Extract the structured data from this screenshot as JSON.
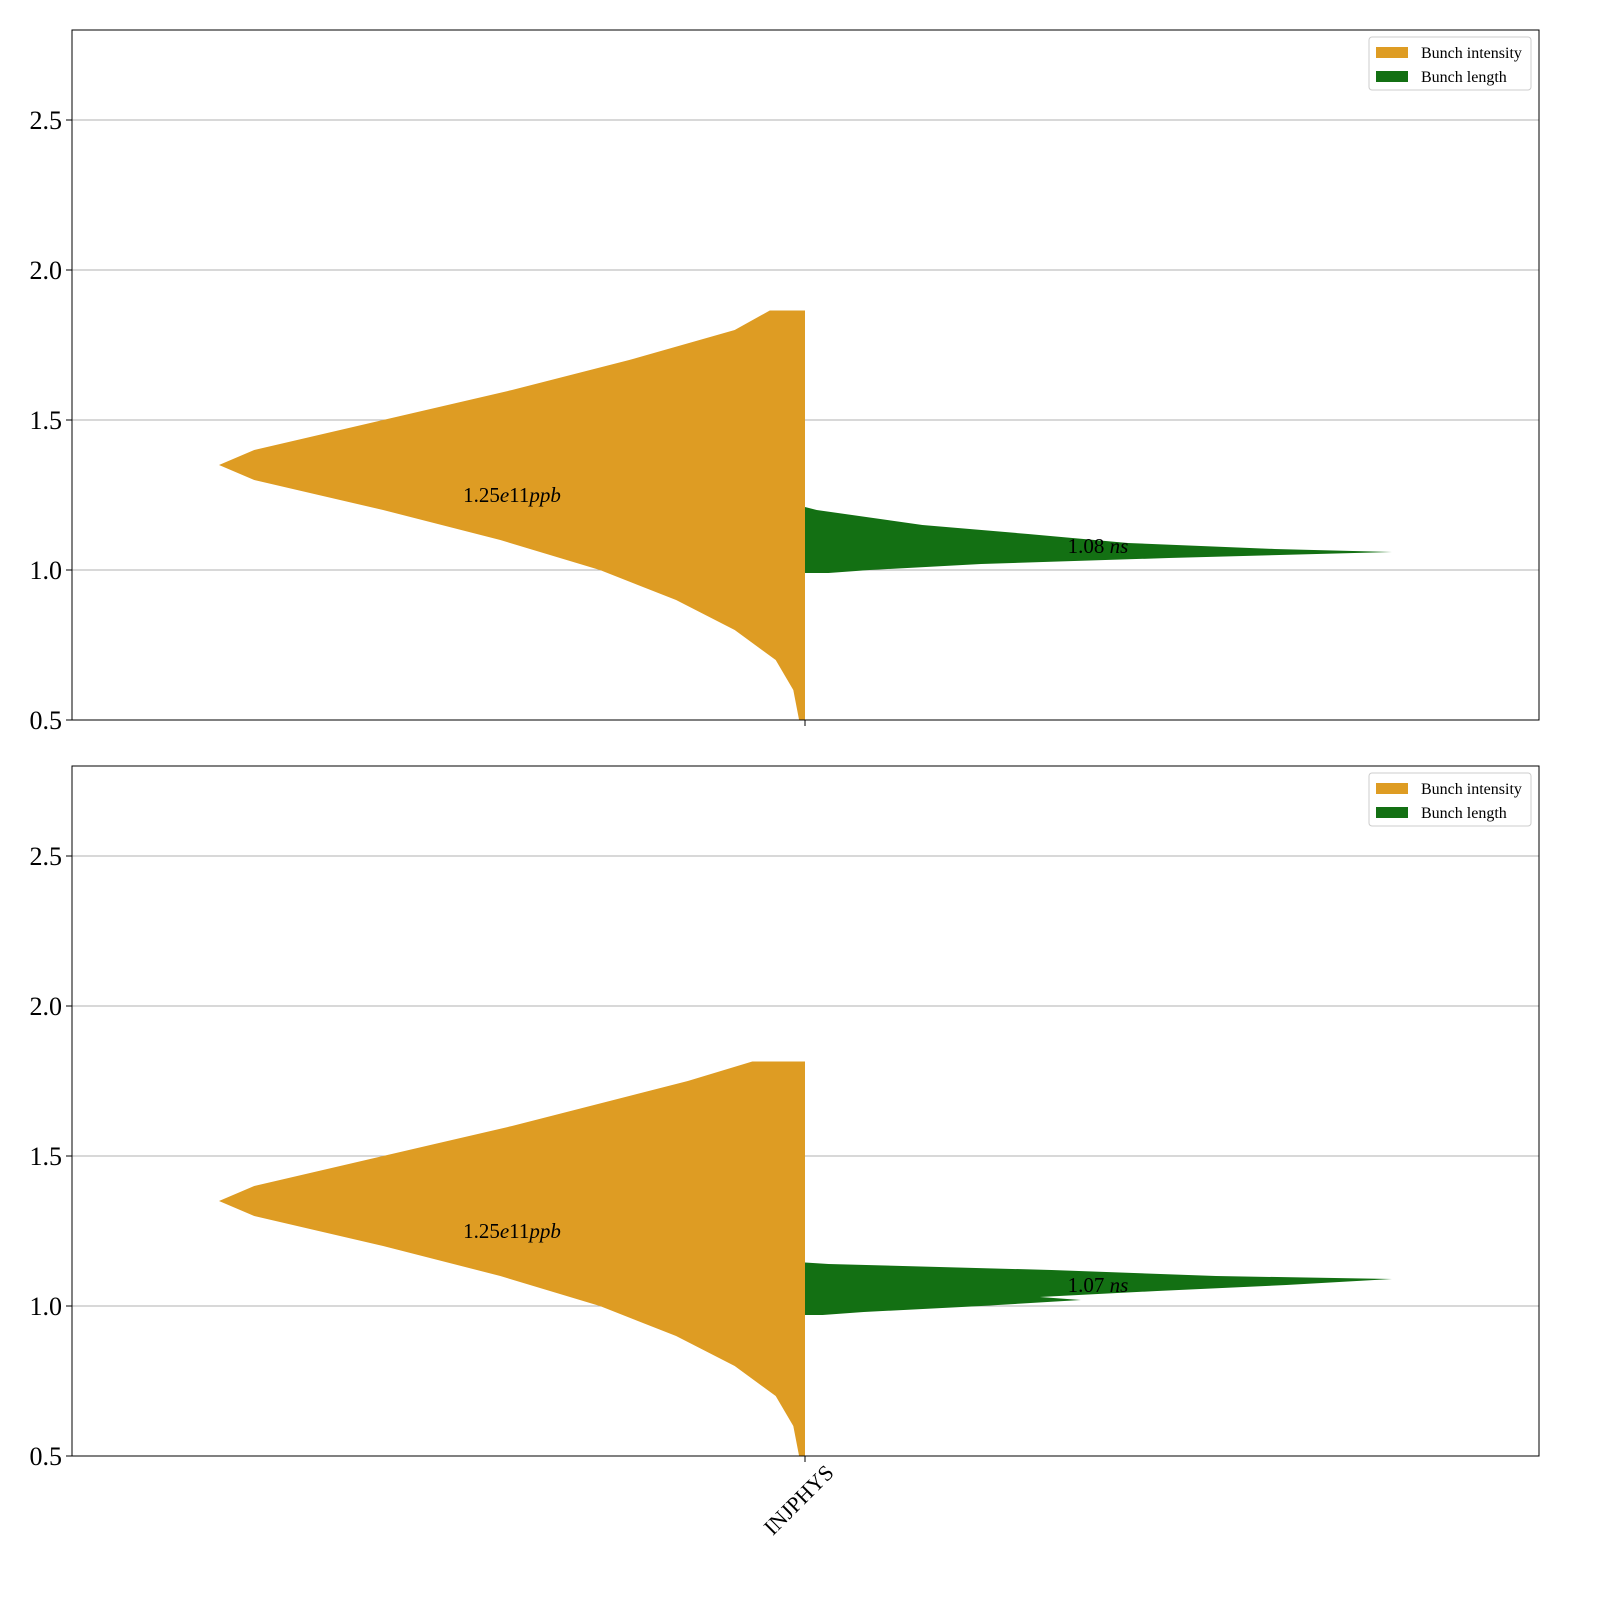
{
  "colors": {
    "intensity": "#de9c23",
    "length": "#137013",
    "grid": "#b0b0b0",
    "axes": "#000000"
  },
  "chart_data": [
    {
      "type": "violin",
      "category": "",
      "ylim": [
        0.5,
        2.8
      ],
      "yticks": [
        "0.5",
        "1.0",
        "1.5",
        "2.0",
        "2.5"
      ],
      "grid": true,
      "legend": {
        "placement": "top-right",
        "entries": [
          "Bunch intensity",
          "Bunch length"
        ]
      },
      "series": [
        {
          "name": "Bunch intensity",
          "side": "left",
          "median_label": "1.25e11ppb",
          "median": 1.25,
          "range": [
            0.5,
            1.865
          ],
          "density": [
            [
              0.5,
              0.01
            ],
            [
              0.6,
              0.02
            ],
            [
              0.7,
              0.05
            ],
            [
              0.8,
              0.12
            ],
            [
              0.9,
              0.22
            ],
            [
              1.0,
              0.35
            ],
            [
              1.1,
              0.52
            ],
            [
              1.2,
              0.72
            ],
            [
              1.25,
              0.83
            ],
            [
              1.3,
              0.94
            ],
            [
              1.35,
              1.0
            ],
            [
              1.4,
              0.94
            ],
            [
              1.5,
              0.72
            ],
            [
              1.6,
              0.5
            ],
            [
              1.7,
              0.3
            ],
            [
              1.8,
              0.12
            ],
            [
              1.865,
              0.06
            ]
          ]
        },
        {
          "name": "Bunch length",
          "side": "right",
          "median_label": "1.08 ns",
          "median": 1.08,
          "range": [
            0.99,
            1.21
          ],
          "density": [
            [
              0.99,
              0.04
            ],
            [
              1.0,
              0.11
            ],
            [
              1.02,
              0.3
            ],
            [
              1.04,
              0.62
            ],
            [
              1.06,
              1.0
            ],
            [
              1.07,
              0.8
            ],
            [
              1.09,
              0.55
            ],
            [
              1.12,
              0.38
            ],
            [
              1.15,
              0.2
            ],
            [
              1.2,
              0.02
            ],
            [
              1.21,
              0.0
            ]
          ]
        }
      ]
    },
    {
      "type": "violin",
      "category": "INJPHYS",
      "ylim": [
        0.5,
        2.8
      ],
      "yticks": [
        "0.5",
        "1.0",
        "1.5",
        "2.0",
        "2.5"
      ],
      "grid": true,
      "legend": {
        "placement": "top-right",
        "entries": [
          "Bunch intensity",
          "Bunch length"
        ]
      },
      "series": [
        {
          "name": "Bunch intensity",
          "side": "left",
          "median_label": "1.25e11ppb",
          "median": 1.25,
          "range": [
            0.5,
            1.815
          ],
          "density": [
            [
              0.5,
              0.01
            ],
            [
              0.6,
              0.02
            ],
            [
              0.7,
              0.05
            ],
            [
              0.8,
              0.12
            ],
            [
              0.9,
              0.22
            ],
            [
              1.0,
              0.35
            ],
            [
              1.1,
              0.52
            ],
            [
              1.2,
              0.72
            ],
            [
              1.25,
              0.83
            ],
            [
              1.3,
              0.94
            ],
            [
              1.35,
              1.0
            ],
            [
              1.4,
              0.94
            ],
            [
              1.5,
              0.72
            ],
            [
              1.6,
              0.5
            ],
            [
              1.7,
              0.3
            ],
            [
              1.75,
              0.2
            ],
            [
              1.815,
              0.09
            ]
          ]
        },
        {
          "name": "Bunch length",
          "side": "right",
          "median_label": "1.07 ns",
          "median": 1.07,
          "range": [
            0.97,
            1.145
          ],
          "density": [
            [
              0.97,
              0.03
            ],
            [
              0.98,
              0.1
            ],
            [
              1.0,
              0.3
            ],
            [
              1.02,
              0.47
            ],
            [
              1.03,
              0.4
            ],
            [
              1.05,
              0.6
            ],
            [
              1.07,
              0.82
            ],
            [
              1.09,
              1.0
            ],
            [
              1.1,
              0.7
            ],
            [
              1.12,
              0.42
            ],
            [
              1.14,
              0.04
            ],
            [
              1.145,
              0.0
            ]
          ]
        }
      ]
    }
  ]
}
